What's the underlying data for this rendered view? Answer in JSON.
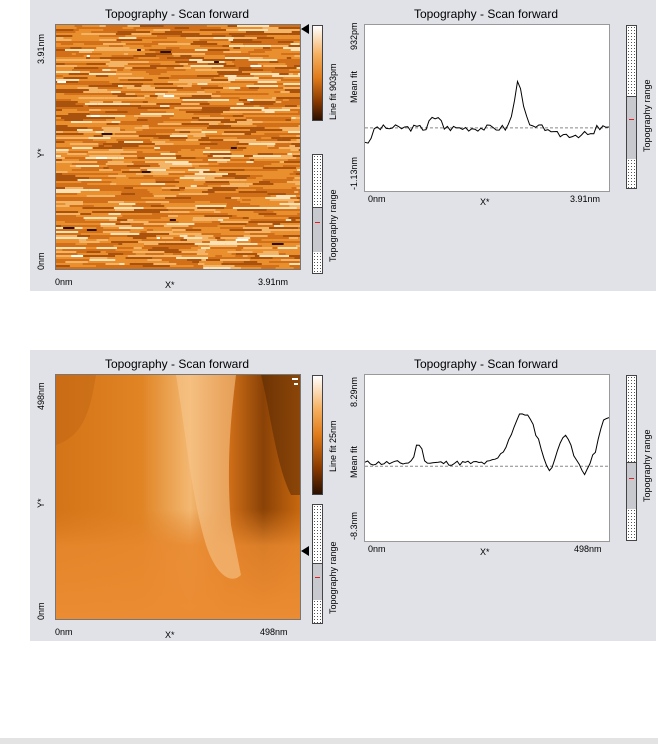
{
  "panels": [
    {
      "image": {
        "title": "Topography - Scan forward",
        "y_axis": {
          "name": "Y*",
          "max": "3.91nm",
          "min": "0nm"
        },
        "x_axis": {
          "name": "X*",
          "min": "0nm",
          "max": "3.91nm"
        },
        "colorbar_label": "Line fit 903pm",
        "range_label": "Topography range"
      },
      "profile": {
        "title": "Topography - Scan forward",
        "y_axis": {
          "name": "Mean fit",
          "max": "932pm",
          "min": "-1.13nm"
        },
        "x_axis": {
          "name": "X*",
          "min": "0nm",
          "max": "3.91nm"
        },
        "range_label": "Topography range",
        "mean_level": 0.38
      }
    },
    {
      "image": {
        "title": "Topography - Scan forward",
        "y_axis": {
          "name": "Y*",
          "max": "498nm",
          "min": "0nm"
        },
        "x_axis": {
          "name": "X*",
          "min": "0nm",
          "max": "498nm"
        },
        "colorbar_label": "Line fit 25nm",
        "range_label": "Topography range"
      },
      "profile": {
        "title": "Topography - Scan forward",
        "y_axis": {
          "name": "Mean fit",
          "max": "8.29nm",
          "min": "-8.3nm"
        },
        "x_axis": {
          "name": "X*",
          "min": "0nm",
          "max": "498nm"
        },
        "range_label": "Topography range",
        "mean_level": 0.45
      }
    }
  ],
  "colors": {
    "panel_bg": "#e1e2e7",
    "afm_dark": "#3a1800",
    "afm_mid": "#e07b1a",
    "afm_light": "#ffffff",
    "mean_line": "#888888",
    "range_marker": "#e02020"
  }
}
